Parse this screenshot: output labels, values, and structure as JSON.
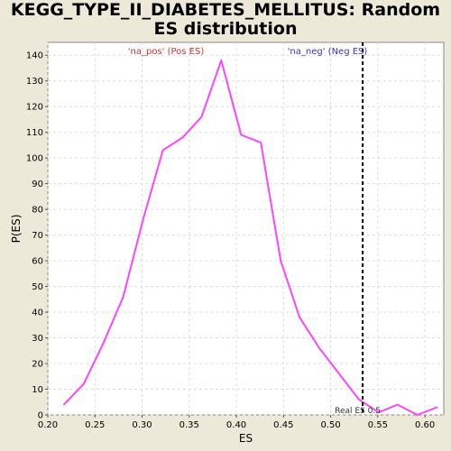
{
  "chart_data": {
    "type": "line",
    "title": "KEGG_TYPE_II_DIABETES_MELLITUS: Random ES distribution",
    "xlabel": "ES",
    "ylabel": "P(ES)",
    "xlim": [
      0.2,
      0.62
    ],
    "ylim": [
      0,
      145
    ],
    "x_ticks": [
      "0.20",
      "0.25",
      "0.30",
      "0.35",
      "0.40",
      "0.45",
      "0.50",
      "0.55",
      "0.60"
    ],
    "y_ticks": [
      "0",
      "10",
      "20",
      "30",
      "40",
      "50",
      "60",
      "70",
      "80",
      "90",
      "100",
      "110",
      "120",
      "130",
      "140"
    ],
    "grid": true,
    "series": [
      {
        "color": "#ff44ff",
        "x": [
          0.217,
          0.238,
          0.259,
          0.28,
          0.301,
          0.322,
          0.343,
          0.363,
          0.384,
          0.405,
          0.426,
          0.447,
          0.467,
          0.488,
          0.509,
          0.53,
          0.551,
          0.571,
          0.592,
          0.613
        ],
        "y": [
          4,
          12,
          28,
          46,
          76,
          103,
          108,
          116,
          138,
          109,
          106,
          60,
          38,
          26,
          16,
          6,
          1,
          4,
          0,
          3
        ]
      }
    ],
    "vline": {
      "x": 0.534,
      "label": "Real ES 0.5",
      "color": "#000000"
    },
    "annotations": [
      {
        "text": "'na_pos' (Pos ES)",
        "color": "#cc3333"
      },
      {
        "text": "'na_neg' (Neg ES)",
        "color": "#3333cc"
      }
    ]
  }
}
